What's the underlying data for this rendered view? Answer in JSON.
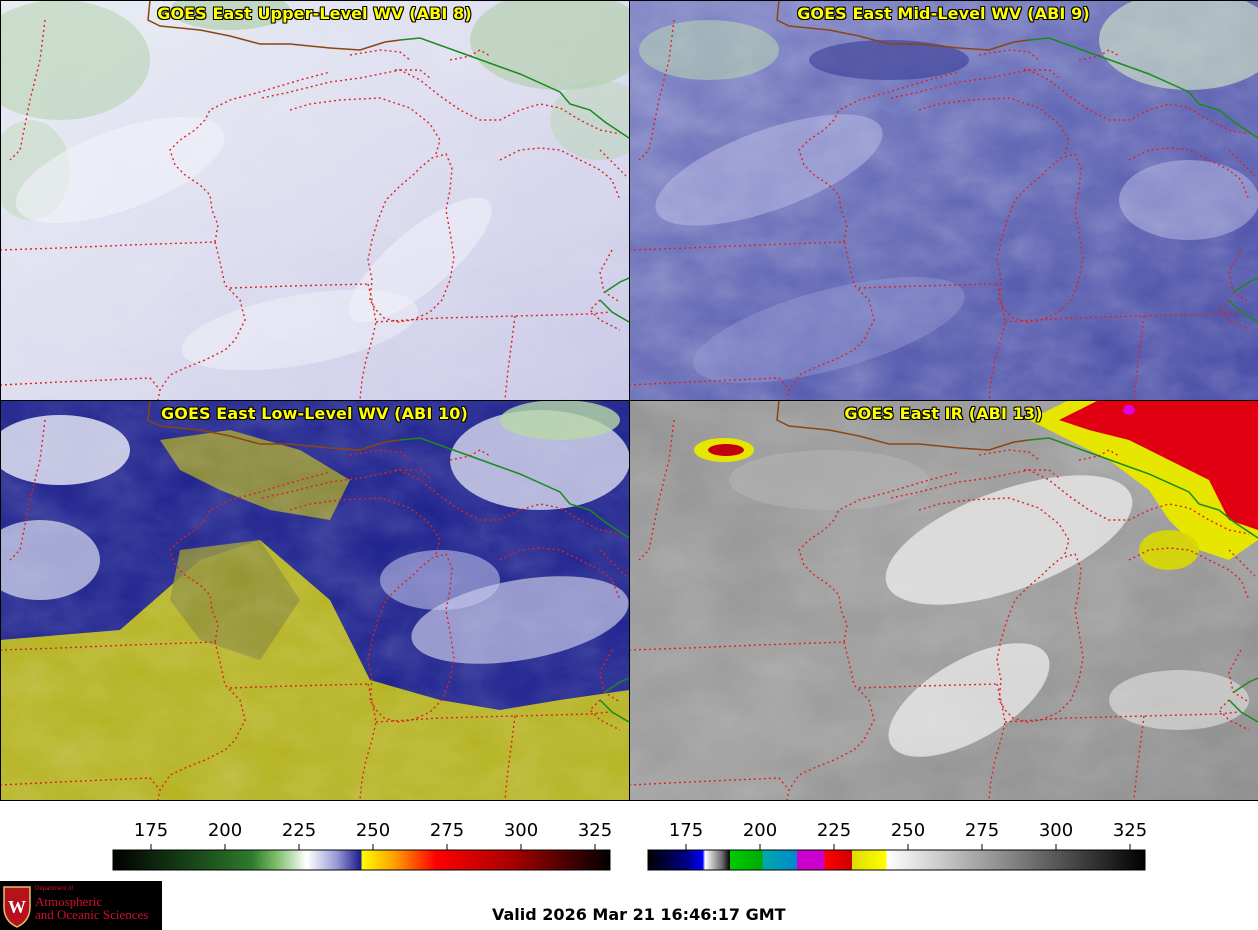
{
  "panels": {
    "upper": {
      "title": "GOES East Upper-Level WV (ABI 8)"
    },
    "mid": {
      "title": "GOES East Mid-Level WV (ABI 9)"
    },
    "low": {
      "title": "GOES East Low-Level WV (ABI 10)"
    },
    "ir": {
      "title": "GOES East IR (ABI 13)"
    }
  },
  "colorbars": {
    "wv": {
      "ticks": [
        "175",
        "200",
        "225",
        "250",
        "275",
        "300",
        "325"
      ]
    },
    "ir": {
      "ticks": [
        "175",
        "200",
        "225",
        "250",
        "275",
        "300",
        "325"
      ]
    }
  },
  "logo": {
    "dept_line1": "Department of",
    "line1": "Atmospheric",
    "line2": "and Oceanic Sciences"
  },
  "valid_time": "Valid 2026 Mar 21 16:46:17 GMT",
  "colors": {
    "state_border": "#dd2222",
    "country_border": "#8b4513",
    "canada_border": "#1a8a1a",
    "title": "#ffff00"
  }
}
